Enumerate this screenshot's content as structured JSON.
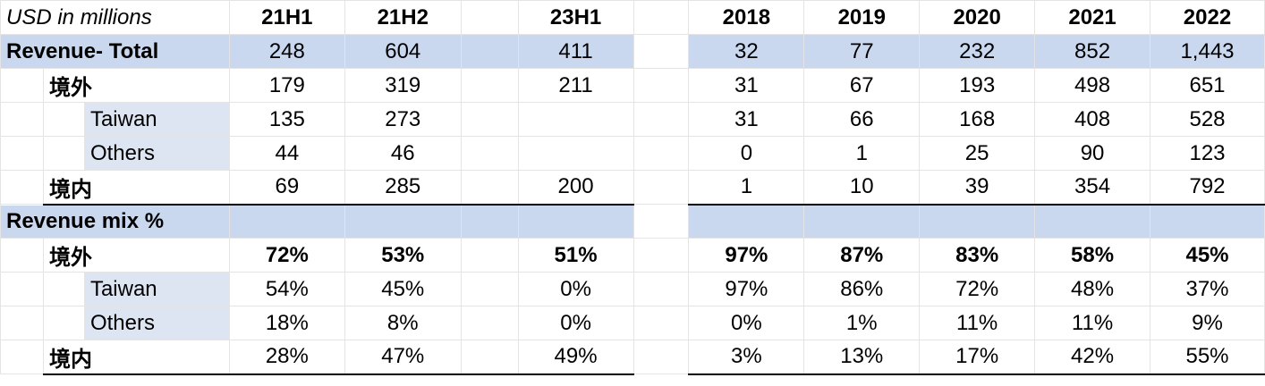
{
  "header": {
    "unit_label": "USD in millions",
    "half_years": [
      "21H1",
      "21H2",
      "23H1"
    ],
    "years": [
      "2018",
      "2019",
      "2020",
      "2021",
      "2022"
    ]
  },
  "rows": {
    "revenue_total": {
      "label": "Revenue- Total",
      "half": [
        "248",
        "604",
        "",
        "411"
      ],
      "years": [
        "32",
        "77",
        "232",
        "852",
        "1,443"
      ]
    },
    "overseas": {
      "label": "境外",
      "half": [
        "179",
        "319",
        "",
        "211"
      ],
      "years": [
        "31",
        "67",
        "193",
        "498",
        "651"
      ]
    },
    "taiwan": {
      "label": "Taiwan",
      "half": [
        "135",
        "273",
        "",
        ""
      ],
      "years": [
        "31",
        "66",
        "168",
        "408",
        "528"
      ]
    },
    "others": {
      "label": "Others",
      "half": [
        "44",
        "46",
        "",
        ""
      ],
      "years": [
        "0",
        "1",
        "25",
        "90",
        "123"
      ]
    },
    "domestic": {
      "label": "境内",
      "half": [
        "69",
        "285",
        "",
        "200"
      ],
      "years": [
        "1",
        "10",
        "39",
        "354",
        "792"
      ]
    },
    "mix_header": {
      "label": "Revenue mix %"
    },
    "mix_overseas": {
      "label": "境外",
      "half": [
        "72%",
        "53%",
        "",
        "51%"
      ],
      "years": [
        "97%",
        "87%",
        "83%",
        "58%",
        "45%"
      ]
    },
    "mix_taiwan": {
      "label": "Taiwan",
      "half": [
        "54%",
        "45%",
        "",
        "0%"
      ],
      "years": [
        "97%",
        "86%",
        "72%",
        "48%",
        "37%"
      ]
    },
    "mix_others": {
      "label": "Others",
      "half": [
        "18%",
        "8%",
        "",
        "0%"
      ],
      "years": [
        "0%",
        "1%",
        "11%",
        "11%",
        "9%"
      ]
    },
    "mix_domestic": {
      "label": "境内",
      "half": [
        "28%",
        "47%",
        "",
        "49%"
      ],
      "years": [
        "3%",
        "13%",
        "17%",
        "42%",
        "55%"
      ]
    }
  }
}
